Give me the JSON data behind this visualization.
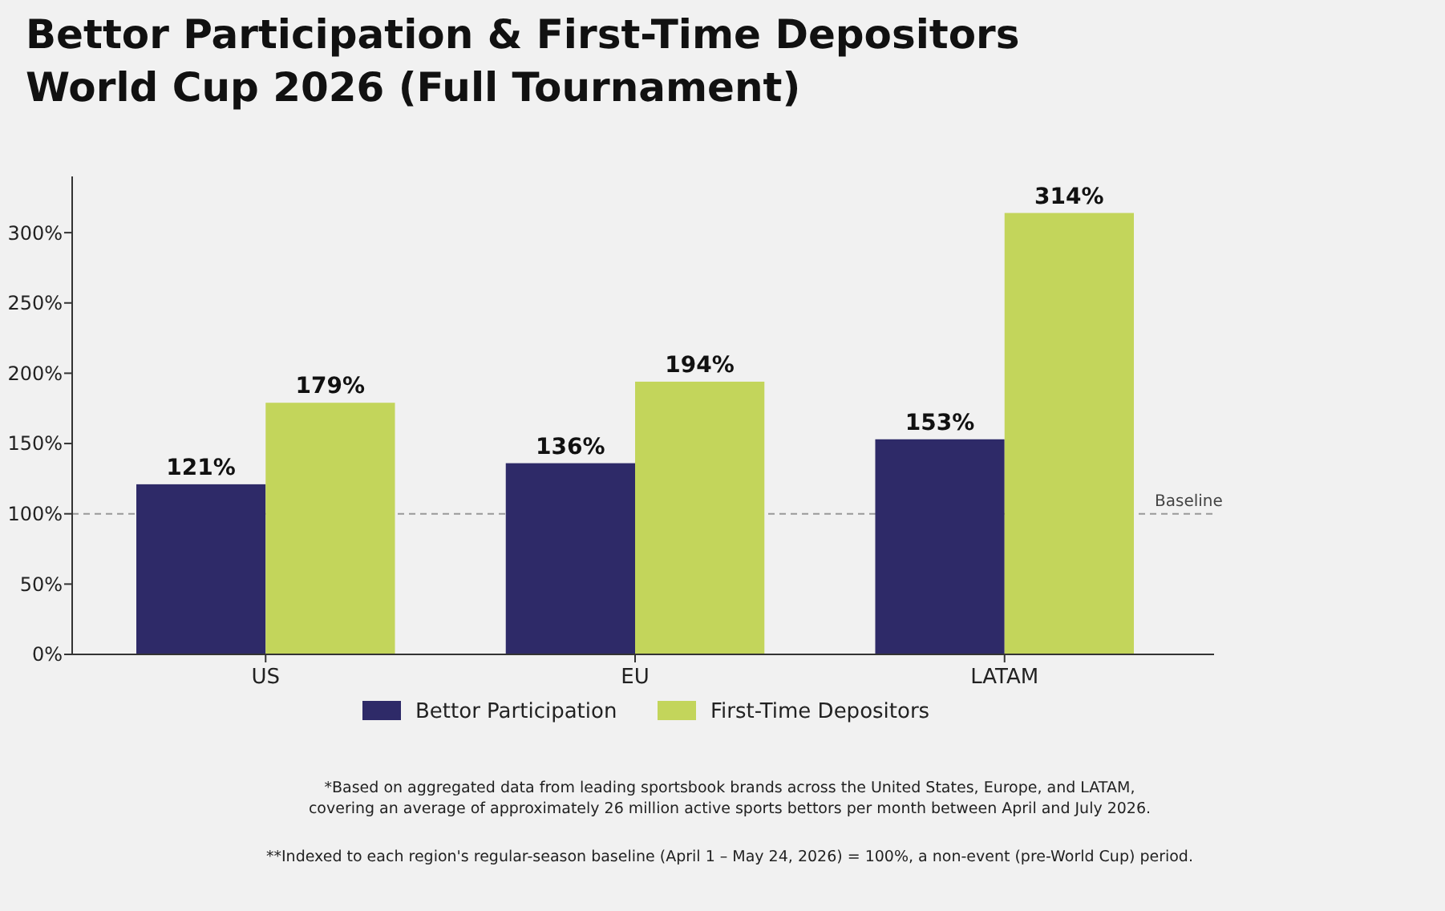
{
  "chart_data": {
    "type": "bar",
    "title": "Bettor Participation & First-Time Depositors",
    "subtitle": "World Cup 2026 (Full Tournament)",
    "categories": [
      "US",
      "EU",
      "LATAM"
    ],
    "series": [
      {
        "name": "Bettor Participation",
        "color": "#2e2a68",
        "values": [
          121,
          136,
          153
        ]
      },
      {
        "name": "First-Time Depositors",
        "color": "#c3d55b",
        "values": [
          179,
          194,
          314
        ]
      }
    ],
    "ylim": [
      0,
      340
    ],
    "yticks": [
      {
        "value": 0,
        "label": "0%"
      },
      {
        "value": 50,
        "label": "50%"
      },
      {
        "value": 100,
        "label": "100%"
      },
      {
        "value": 150,
        "label": "150%"
      },
      {
        "value": 200,
        "label": "200%"
      },
      {
        "value": 250,
        "label": "250%"
      },
      {
        "value": 300,
        "label": "300%"
      }
    ],
    "value_labels": [
      [
        "121%",
        "136%",
        "153%"
      ],
      [
        "179%",
        "194%",
        "314%"
      ]
    ],
    "ref_lines": [
      {
        "axis": "y",
        "value": 100,
        "label": "Baseline",
        "color": "#999999",
        "line_style": "dashed"
      }
    ],
    "legend": "bottom",
    "grid": false,
    "annotations": [
      "*Based on aggregated data from leading sportsbook brands across the United States, Europe, and LATAM,\ncovering an average of approximately 26 million active sports bettors per month between April and July 2026.",
      "**Indexed to each region's regular-season baseline (April 1 – May 24, 2026) = 100%, a non-event (pre-World Cup) period."
    ]
  }
}
